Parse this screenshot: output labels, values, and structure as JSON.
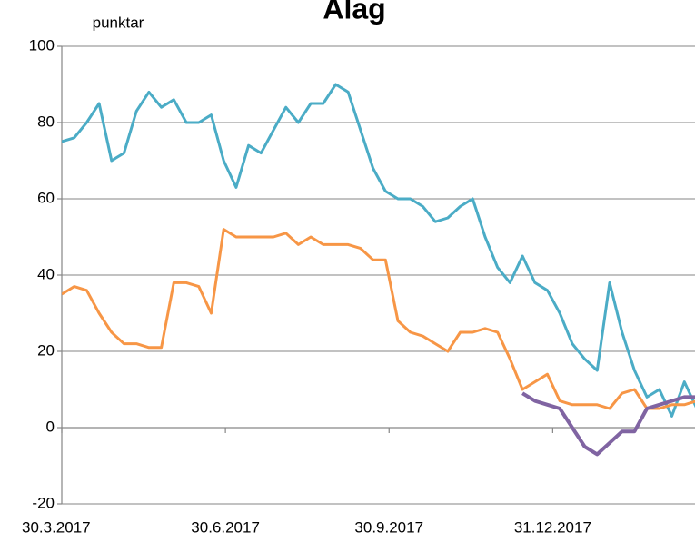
{
  "chart_data": {
    "type": "line",
    "title": "Álag",
    "y_label": "punktar",
    "x": [
      "30.3.2017",
      "6.4.2017",
      "13.4.2017",
      "20.4.2017",
      "27.4.2017",
      "4.5.2017",
      "11.5.2017",
      "18.5.2017",
      "25.5.2017",
      "1.6.2017",
      "8.6.2017",
      "15.6.2017",
      "22.6.2017",
      "29.6.2017",
      "6.7.2017",
      "13.7.2017",
      "20.7.2017",
      "27.7.2017",
      "3.8.2017",
      "10.8.2017",
      "17.8.2017",
      "24.8.2017",
      "31.8.2017",
      "7.9.2017",
      "14.9.2017",
      "21.9.2017",
      "28.9.2017",
      "5.10.2017",
      "12.10.2017",
      "19.10.2017",
      "26.10.2017",
      "2.11.2017",
      "9.11.2017",
      "16.11.2017",
      "23.11.2017",
      "30.11.2017",
      "7.12.2017",
      "14.12.2017",
      "21.12.2017",
      "28.12.2017",
      "4.1.2018",
      "11.1.2018",
      "18.1.2018",
      "25.1.2018",
      "1.2.2018",
      "8.2.2018",
      "15.2.2018",
      "22.2.2018",
      "1.3.2018",
      "8.3.2018",
      "15.3.2018",
      "22.3.2018"
    ],
    "series": [
      {
        "color": "#4bacc6",
        "values": [
          75,
          76,
          80,
          85,
          70,
          72,
          83,
          88,
          84,
          86,
          80,
          80,
          82,
          70,
          63,
          74,
          72,
          78,
          84,
          80,
          85,
          85,
          90,
          88,
          78,
          68,
          62,
          60,
          60,
          58,
          54,
          55,
          58,
          60,
          50,
          42,
          38,
          45,
          38,
          36,
          30,
          22,
          18,
          15,
          38,
          25,
          15,
          8,
          10,
          3,
          12,
          5
        ]
      },
      {
        "color": "#f79646",
        "values": [
          35,
          37,
          36,
          30,
          25,
          22,
          22,
          21,
          21,
          38,
          38,
          37,
          30,
          52,
          50,
          50,
          50,
          50,
          51,
          48,
          50,
          48,
          48,
          48,
          47,
          44,
          44,
          28,
          25,
          24,
          22,
          20,
          25,
          25,
          26,
          25,
          18,
          10,
          12,
          14,
          7,
          6,
          6,
          6,
          5,
          9,
          10,
          5,
          5,
          6,
          6,
          7
        ]
      },
      {
        "color": "#8064a2",
        "values": [
          null,
          null,
          null,
          null,
          null,
          null,
          null,
          null,
          null,
          null,
          null,
          null,
          null,
          null,
          null,
          null,
          null,
          null,
          null,
          null,
          null,
          null,
          null,
          null,
          null,
          null,
          null,
          null,
          null,
          null,
          null,
          null,
          null,
          null,
          null,
          null,
          null,
          9,
          7,
          6,
          5,
          0,
          -5,
          -7,
          -4,
          -1,
          -1,
          5,
          6,
          7,
          8,
          8
        ]
      }
    ],
    "xlim": [
      "30.3.2017",
      "21.3.2018"
    ],
    "xticks": [
      "30.3.2017",
      "30.6.2017",
      "30.9.2017",
      "31.12.2017"
    ],
    "ylim": [
      -20,
      100
    ],
    "yticks": [
      -20,
      0,
      20,
      40,
      60,
      80,
      100
    ],
    "grid": true
  }
}
